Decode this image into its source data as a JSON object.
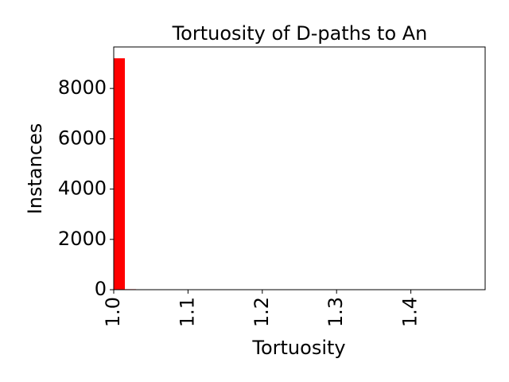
{
  "chart_data": {
    "type": "bar",
    "title": "Tortuosity of D-paths to An",
    "xlabel": "Tortuosity",
    "ylabel": "Instances",
    "xlim": [
      1.0,
      1.5
    ],
    "ylim": [
      0,
      9650
    ],
    "x_ticks": [
      1.0,
      1.1,
      1.2,
      1.3,
      1.4
    ],
    "x_tick_labels": [
      "1.0",
      "1.1",
      "1.2",
      "1.3",
      "1.4"
    ],
    "y_ticks": [
      0,
      2000,
      4000,
      6000,
      8000
    ],
    "y_tick_labels": [
      "0",
      "2000",
      "4000",
      "6000",
      "8000"
    ],
    "grid": false,
    "series": [
      {
        "color": "#ff0000",
        "bins": [
          {
            "x0": 1.0,
            "x1": 1.015,
            "value": 9200
          },
          {
            "x0": 1.015,
            "x1": 1.03,
            "value": 20
          },
          {
            "x0": 1.03,
            "x1": 1.045,
            "value": 12
          },
          {
            "x0": 1.045,
            "x1": 1.06,
            "value": 10
          },
          {
            "x0": 1.06,
            "x1": 1.075,
            "value": 8
          },
          {
            "x0": 1.075,
            "x1": 1.09,
            "value": 6
          },
          {
            "x0": 1.09,
            "x1": 1.105,
            "value": 6
          },
          {
            "x0": 1.105,
            "x1": 1.12,
            "value": 5
          },
          {
            "x0": 1.12,
            "x1": 1.135,
            "value": 4
          },
          {
            "x0": 1.135,
            "x1": 1.15,
            "value": 4
          },
          {
            "x0": 1.15,
            "x1": 1.165,
            "value": 3
          },
          {
            "x0": 1.165,
            "x1": 1.18,
            "value": 3
          },
          {
            "x0": 1.18,
            "x1": 1.195,
            "value": 3
          },
          {
            "x0": 1.195,
            "x1": 1.21,
            "value": 2
          },
          {
            "x0": 1.21,
            "x1": 1.225,
            "value": 2
          },
          {
            "x0": 1.225,
            "x1": 1.24,
            "value": 2
          },
          {
            "x0": 1.245,
            "x1": 1.26,
            "value": 0
          },
          {
            "x0": 1.26,
            "x1": 1.275,
            "value": 0
          },
          {
            "x0": 1.275,
            "x1": 1.29,
            "value": 2
          }
        ]
      }
    ]
  }
}
